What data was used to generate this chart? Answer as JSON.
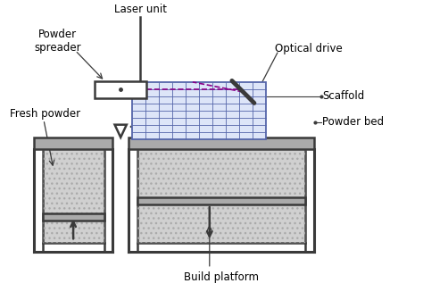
{
  "bg_color": "#ffffff",
  "line_color": "#3a3a3a",
  "gray_fill": "#aaaaaa",
  "light_gray_fill": "#d8d8d8",
  "dotted_fill": "#d0d0d0",
  "scaffold_color": "#5566aa",
  "scaffold_fill": "#dde5f8",
  "dashed_color": "#880088",
  "labels": {
    "laser_unit": "Laser unit",
    "powder_spreader": "Powder\nspreader",
    "optical_drive": "Optical drive",
    "fresh_powder": "Fresh powder",
    "scaffold": "Scaffold",
    "powder_bed": "Powder bed",
    "build_platform": "Build platform"
  },
  "layout": {
    "xlim": [
      0,
      10
    ],
    "ylim": [
      0,
      7.5
    ],
    "lw": 1.8,
    "wall_lw": 2.2
  }
}
